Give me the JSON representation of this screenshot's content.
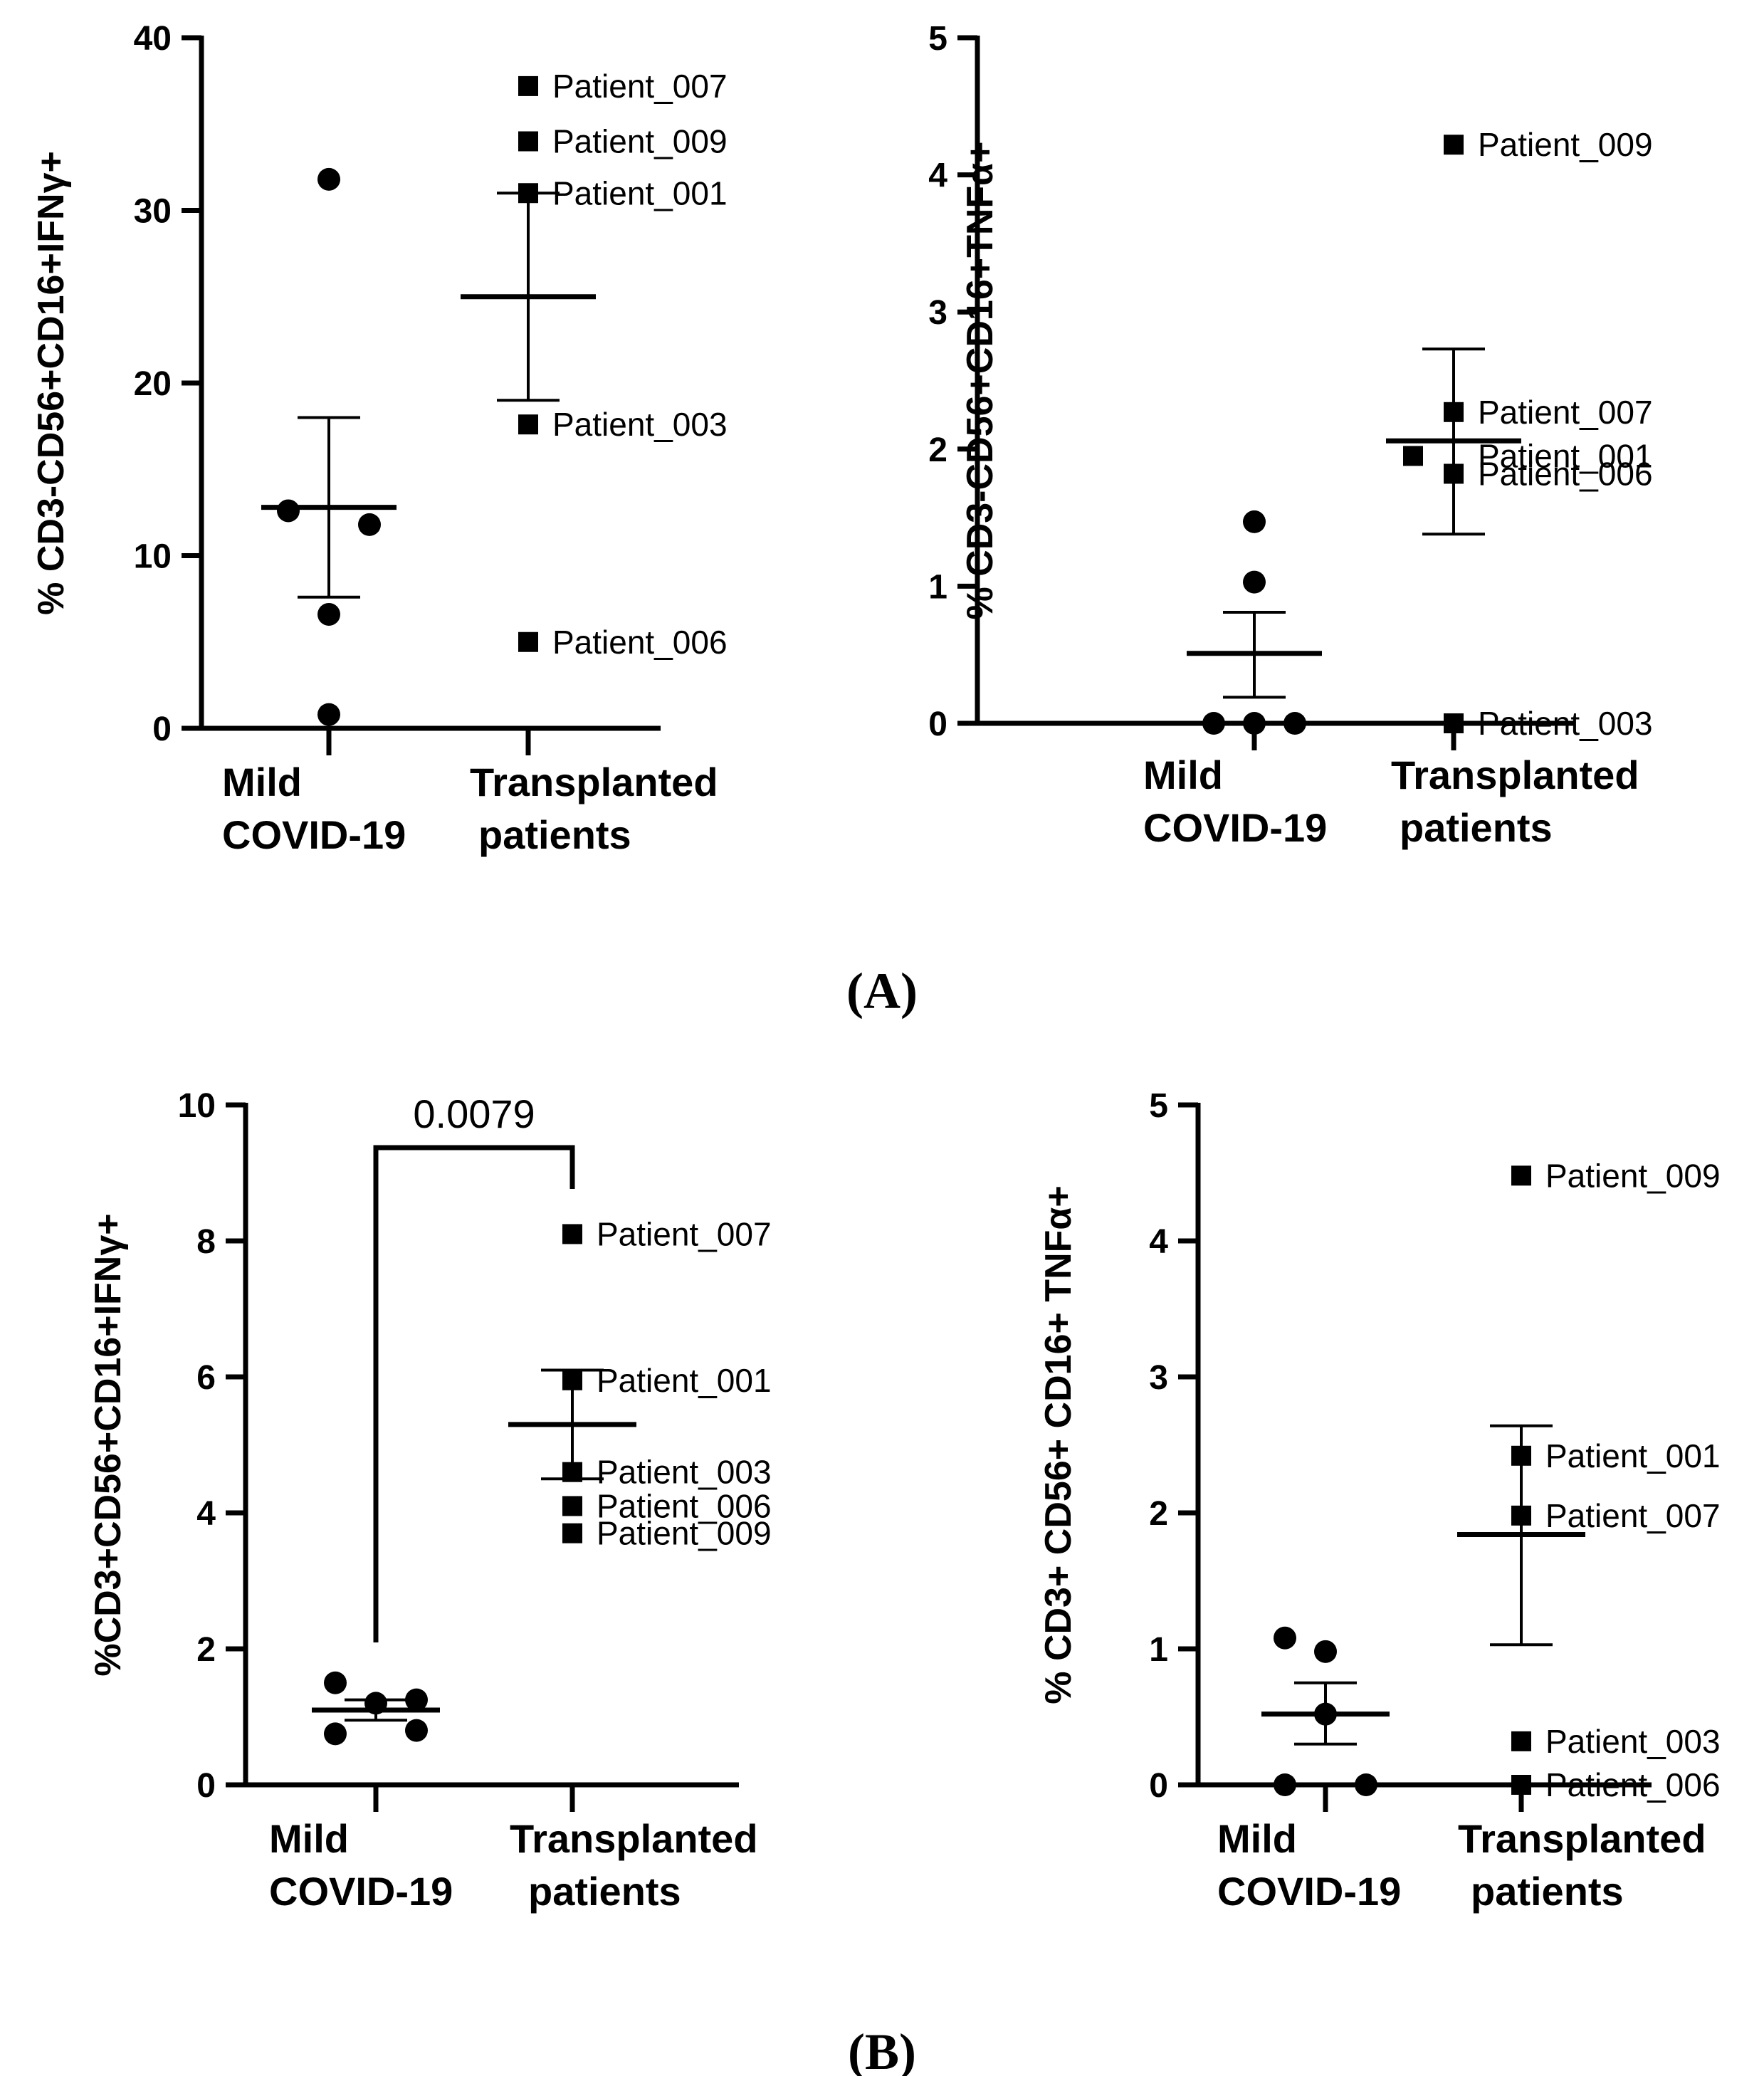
{
  "panel_labels": [
    "(A)",
    "(B)"
  ],
  "colors": {
    "ink": "#000000",
    "background": "#ffffff"
  },
  "chart_data": [
    {
      "type": "scatter",
      "panel": "A",
      "ylabel": "% CD3-CD56+CD16+IFNγ+",
      "categories": [
        "Mild\nCOVID-19",
        "Transplanted\npatients"
      ],
      "ylim": [
        0,
        40
      ],
      "yticks": [
        0,
        10,
        20,
        30,
        40
      ],
      "series": [
        {
          "name": "Mild COVID-19",
          "marker": "circle",
          "points": [
            {
              "x": -0.22,
              "y": 12.6
            },
            {
              "x": 0.22,
              "y": 11.8
            },
            {
              "x": 0.0,
              "y": 6.6
            },
            {
              "x": 0.0,
              "y": 0.8
            },
            {
              "x": 0.0,
              "y": 31.8
            }
          ]
        },
        {
          "name": "Transplanted patients",
          "marker": "square",
          "points": [
            {
              "y": 37.2,
              "label": "Patient_007"
            },
            {
              "y": 34.0,
              "label": "Patient_009"
            },
            {
              "y": 31.0,
              "label": "Patient_001"
            },
            {
              "y": 17.6,
              "label": "Patient_003"
            },
            {
              "y": 5.0,
              "label": "Patient_006"
            }
          ]
        }
      ],
      "summary": [
        {
          "mean": 12.8,
          "lower": 7.6,
          "upper": 18.0
        },
        {
          "mean": 25.0,
          "lower": 19.0,
          "upper": 31.0
        }
      ],
      "pvalue": null
    },
    {
      "type": "scatter",
      "panel": "A",
      "ylabel": "% CD3-CD56+CD16+TNFα+",
      "categories": [
        "Mild\nCOVID-19",
        "Transplanted\npatients"
      ],
      "ylim": [
        0,
        5
      ],
      "yticks": [
        0,
        1,
        2,
        3,
        4,
        5
      ],
      "series": [
        {
          "name": "Mild COVID-19",
          "marker": "circle",
          "points": [
            {
              "x": 0.0,
              "y": 1.47
            },
            {
              "x": 0.0,
              "y": 1.03
            },
            {
              "x": -0.22,
              "y": 0.0
            },
            {
              "x": 0.0,
              "y": 0.0
            },
            {
              "x": 0.22,
              "y": 0.0
            }
          ]
        },
        {
          "name": "Transplanted patients",
          "marker": "square",
          "points": [
            {
              "y": 4.22,
              "label": "Patient_009"
            },
            {
              "y": 2.27,
              "label": "Patient_007"
            },
            {
              "y": 1.95,
              "label": "Patient_001",
              "dx": -0.22
            },
            {
              "y": 1.82,
              "label": "Patient_006"
            },
            {
              "y": 0.0,
              "label": "Patient_003"
            }
          ]
        }
      ],
      "summary": [
        {
          "mean": 0.51,
          "lower": 0.19,
          "upper": 0.81
        },
        {
          "mean": 2.06,
          "lower": 1.38,
          "upper": 2.73
        }
      ],
      "pvalue": null
    },
    {
      "type": "scatter",
      "panel": "B",
      "ylabel": "%CD3+CD56+CD16+IFNγ+",
      "categories": [
        "Mild\nCOVID-19",
        "Transplanted\npatients"
      ],
      "ylim": [
        0,
        10
      ],
      "yticks": [
        0,
        2,
        4,
        6,
        8,
        10
      ],
      "series": [
        {
          "name": "Mild COVID-19",
          "marker": "circle",
          "points": [
            {
              "x": -0.22,
              "y": 1.5
            },
            {
              "x": 0.0,
              "y": 1.2
            },
            {
              "x": 0.22,
              "y": 1.25
            },
            {
              "x": -0.22,
              "y": 0.75
            },
            {
              "x": 0.22,
              "y": 0.8
            }
          ]
        },
        {
          "name": "Transplanted patients",
          "marker": "square",
          "points": [
            {
              "y": 8.1,
              "label": "Patient_007"
            },
            {
              "y": 5.95,
              "label": "Patient_001"
            },
            {
              "y": 4.6,
              "label": "Patient_003"
            },
            {
              "y": 4.1,
              "label": "Patient_006"
            },
            {
              "y": 3.7,
              "label": "Patient_009"
            }
          ]
        }
      ],
      "summary": [
        {
          "mean": 1.1,
          "lower": 0.95,
          "upper": 1.25
        },
        {
          "mean": 5.3,
          "lower": 4.5,
          "upper": 6.1
        }
      ],
      "pvalue": "0.0079"
    },
    {
      "type": "scatter",
      "panel": "B",
      "ylabel": "% CD3+ CD56+ CD16+ TNFα+",
      "categories": [
        "Mild\nCOVID-19",
        "Transplanted\npatients"
      ],
      "ylim": [
        0,
        5
      ],
      "yticks": [
        0,
        1,
        2,
        3,
        4,
        5
      ],
      "series": [
        {
          "name": "Mild COVID-19",
          "marker": "circle",
          "points": [
            {
              "x": -0.22,
              "y": 1.08
            },
            {
              "x": 0.0,
              "y": 0.98
            },
            {
              "x": 0.0,
              "y": 0.52
            },
            {
              "x": -0.22,
              "y": 0.0
            },
            {
              "x": 0.22,
              "y": 0.0
            }
          ]
        },
        {
          "name": "Transplanted patients",
          "marker": "square",
          "points": [
            {
              "y": 4.48,
              "label": "Patient_009"
            },
            {
              "y": 2.42,
              "label": "Patient_001"
            },
            {
              "y": 1.98,
              "label": "Patient_007"
            },
            {
              "y": 0.32,
              "label": "Patient_003"
            },
            {
              "y": 0.0,
              "label": "Patient_006"
            }
          ]
        }
      ],
      "summary": [
        {
          "mean": 0.52,
          "lower": 0.3,
          "upper": 0.75
        },
        {
          "mean": 1.84,
          "lower": 1.03,
          "upper": 2.64
        }
      ],
      "pvalue": null
    }
  ]
}
